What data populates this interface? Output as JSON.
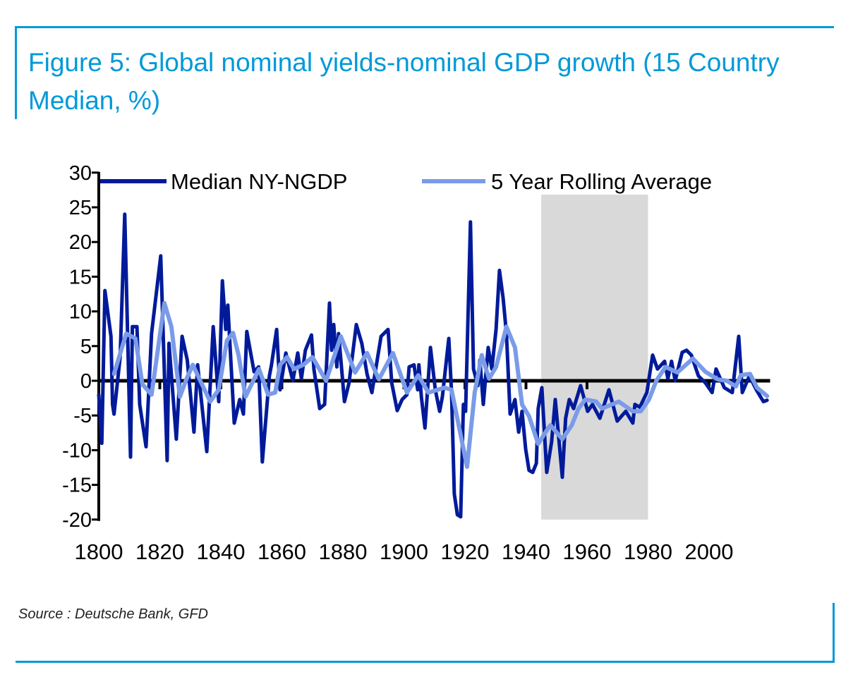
{
  "title": "Figure 5: Global nominal yields-nominal GDP growth (15 Country Median, %)",
  "source": "Source : Deutsche Bank, GFD",
  "chart_data": {
    "type": "line",
    "title": "Figure 5: Global nominal yields-nominal GDP growth (15 Country Median, %)",
    "xlabel": "",
    "ylabel": "",
    "xlim": [
      1800,
      2020
    ],
    "ylim": [
      -20,
      30
    ],
    "x_ticks": [
      "1800",
      "1820",
      "1840",
      "1860",
      "1880",
      "1900",
      "1920",
      "1940",
      "1960",
      "1980",
      "2000"
    ],
    "y_ticks": [
      "30",
      "25",
      "20",
      "15",
      "10",
      "5",
      "0",
      "-5",
      "-10",
      "-15",
      "-20"
    ],
    "grid": false,
    "legend": "top",
    "shaded_region": {
      "from": 1945,
      "to": 1980,
      "color": "#d9d9d9"
    },
    "series": [
      {
        "name": "Median NY-NGDP",
        "color": "#001a9a",
        "x": [
          1800,
          1801,
          1802,
          1804,
          1804.5,
          1805,
          1807,
          1808.5,
          1810.4,
          1811,
          1812.5,
          1813.4,
          1815.5,
          1817.3,
          1820.3,
          1822.4,
          1823,
          1825.4,
          1827.3,
          1829,
          1831.2,
          1832.4,
          1835.4,
          1837.5,
          1839.3,
          1840.5,
          1841.6,
          1842.3,
          1844.4,
          1846.2,
          1847.4,
          1848.5,
          1850.9,
          1852.4,
          1853.6,
          1855.9,
          1856.6,
          1858.3,
          1859.4,
          1861.3,
          1863.6,
          1865.2,
          1866.4,
          1867.7,
          1869.7,
          1870.5,
          1872.4,
          1874,
          1875.6,
          1876.3,
          1877,
          1878,
          1878.6,
          1880.5,
          1882,
          1884.4,
          1886.2,
          1887.9,
          1889.5,
          1892.5,
          1894.8,
          1896,
          1897.8,
          1899.4,
          1901,
          1901.7,
          1903.3,
          1904.5,
          1904.9,
          1905.7,
          1906.9,
          1908.7,
          1910.3,
          1911.7,
          1912.6,
          1914.7,
          1915.6,
          1916.5,
          1917.5,
          1918.6,
          1919.5,
          1920.2,
          1921.8,
          1922.8,
          1924.2,
          1924.9,
          1926,
          1927.6,
          1928.8,
          1930.2,
          1931.3,
          1932.5,
          1933.6,
          1934.8,
          1936.4,
          1937.6,
          1938.7,
          1939.9,
          1941,
          1942.2,
          1943.4,
          1944,
          1945.2,
          1946.8,
          1948.4,
          1949.6,
          1951.9,
          1953,
          1954.2,
          1955.6,
          1957.9,
          1960.2,
          1961.8,
          1964.2,
          1967.2,
          1969.9,
          1972.7,
          1975,
          1975.7,
          1977.3,
          1979.6,
          1981.5,
          1983.1,
          1985.4,
          1986.5,
          1987.7,
          1988.9,
          1991.2,
          1992.6,
          1994.2,
          1996.5,
          1998.8,
          2001,
          2002.3,
          2005,
          2007.6,
          2009.7,
          2010.9,
          2013.2,
          2015.5,
          2017.8,
          2019
        ],
        "y": [
          -2,
          -9,
          13,
          6.4,
          -3.4,
          -4.8,
          3.4,
          24,
          -11,
          7.8,
          7.8,
          -3.4,
          -9.5,
          6.8,
          18,
          -11.5,
          5.4,
          -8.4,
          6.4,
          3,
          -7.4,
          2.3,
          -10.2,
          7.8,
          -3,
          14.4,
          7.4,
          10.9,
          -6.1,
          -2.7,
          -4.8,
          7.1,
          1.3,
          2,
          -11.7,
          0.7,
          2.3,
          7.4,
          -1.3,
          4,
          0,
          4,
          0.3,
          4.4,
          6.6,
          1.7,
          -4,
          -3.4,
          11.2,
          4.4,
          8.1,
          2,
          6.8,
          -3,
          -0.3,
          8.1,
          5.4,
          1,
          -1.7,
          6.4,
          7.4,
          -0.3,
          -4.3,
          -2.7,
          -2,
          2,
          2.3,
          -1.3,
          2.3,
          -2.3,
          -6.8,
          4.8,
          -1.3,
          -4.4,
          -2.3,
          6.1,
          -1.7,
          -16.3,
          -19.3,
          -19.6,
          -3.4,
          -4.4,
          22.9,
          1.7,
          -0.7,
          3,
          -3.4,
          4.8,
          1.7,
          7.4,
          15.9,
          11.9,
          6.8,
          -4.8,
          -2.7,
          -7.4,
          -4.4,
          -9.9,
          -12.9,
          -13.2,
          -11.9,
          -4,
          -1,
          -13.2,
          -8.8,
          -2.7,
          -13.9,
          -5.4,
          -2.7,
          -4,
          -0.7,
          -4.4,
          -3.4,
          -5.4,
          -1.3,
          -5.8,
          -4.4,
          -6.1,
          -3.4,
          -3.8,
          -1.7,
          3.7,
          1.7,
          2.8,
          0.3,
          2.8,
          0,
          4.1,
          4.4,
          3.7,
          0.7,
          -0.3,
          -1.7,
          1.7,
          -1,
          -1.7,
          6.4,
          -1.7,
          0.7,
          -1.3,
          -3,
          -2.8
        ]
      },
      {
        "name": "5 Year Rolling Average",
        "color": "#7a9be8",
        "x": [
          1805,
          1809,
          1812,
          1814.3,
          1817.3,
          1821.5,
          1823.8,
          1826.6,
          1828.5,
          1830.8,
          1836.5,
          1839.3,
          1842,
          1844,
          1845.8,
          1848.1,
          1852.5,
          1855.5,
          1857.8,
          1859.4,
          1861.7,
          1864,
          1867,
          1870,
          1874.5,
          1879.3,
          1884,
          1887.9,
          1891.8,
          1896.4,
          1901,
          1904.7,
          1908,
          1913.3,
          1915.6,
          1920.7,
          1923.2,
          1925.5,
          1927.9,
          1930.2,
          1933.6,
          1936.4,
          1938.7,
          1941,
          1944,
          1947.3,
          1948,
          1951.9,
          1955,
          1957.2,
          1959.5,
          1963,
          1964.9,
          1970.4,
          1975,
          1977.6,
          1980.3,
          1982.7,
          1985.7,
          1989.6,
          1994.7,
          1998.8,
          2002.8,
          2005.8,
          2008.8,
          2010.4,
          2013.4,
          2015.7,
          2019
        ],
        "y": [
          1,
          6.8,
          6.1,
          -0.5,
          -2,
          11.2,
          7.8,
          -2.3,
          0,
          2.3,
          -3,
          -1.3,
          5.8,
          6.9,
          3.7,
          -2.3,
          1.7,
          -2,
          -1.7,
          2.3,
          3.4,
          1.7,
          2.3,
          3.4,
          0,
          6.4,
          1.2,
          4,
          0.2,
          4,
          -1.7,
          0.8,
          -1.7,
          -1,
          -1.3,
          -12.4,
          -1.7,
          3.7,
          0.3,
          2,
          7.8,
          4.8,
          -3.4,
          -5.1,
          -9.1,
          -6.8,
          -6.4,
          -8.4,
          -6.4,
          -4,
          -2.7,
          -3,
          -4,
          -3,
          -4.4,
          -4.4,
          -2.7,
          0,
          2,
          1.2,
          3.2,
          1.3,
          0.2,
          0,
          -0.8,
          0.8,
          1,
          -1,
          -2.2
        ]
      }
    ]
  }
}
